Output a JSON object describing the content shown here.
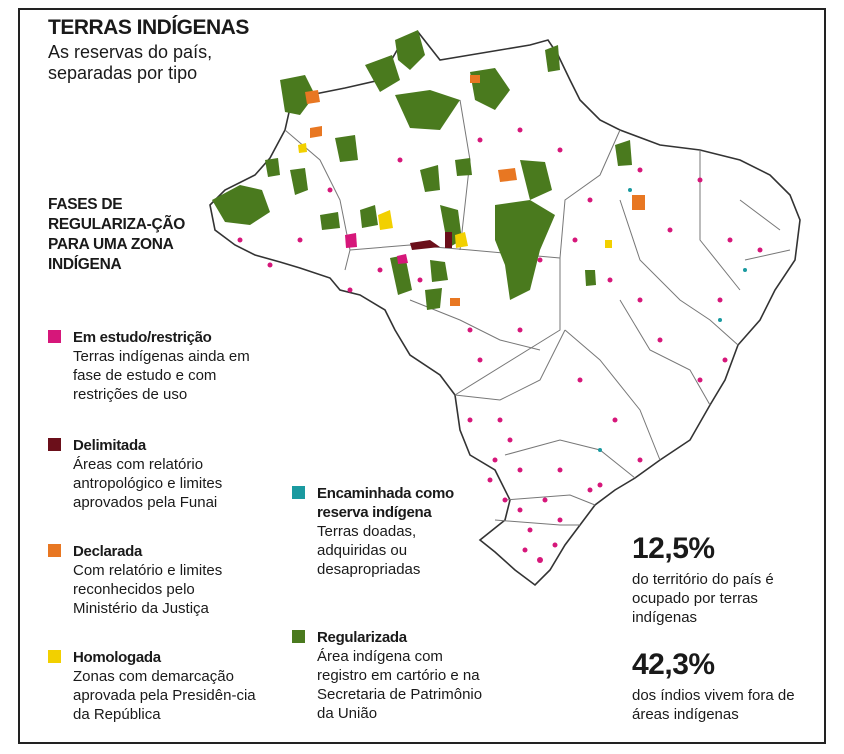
{
  "header": {
    "title": "TERRAS INDÍGENAS",
    "subtitle": "As reservas do país, separadas por tipo"
  },
  "legend": {
    "heading": "FASES DE REGULARIZA-ÇÃO PARA UMA ZONA INDÍGENA",
    "items": [
      {
        "title": "Em estudo/restrição",
        "desc": "Terras indígenas ainda em fase de estudo e com restrições de uso",
        "color": "#d6177a"
      },
      {
        "title": "Delimitada",
        "desc": "Áreas com relatório antropológico e limites aprovados pela Funai",
        "color": "#6b0f1a"
      },
      {
        "title": "Declarada",
        "desc": "Com relatório e limites reconhecidos pelo Ministério da Justiça",
        "color": "#e87722"
      },
      {
        "title": "Homologada",
        "desc": "Zonas com demarcação aprovada pela Presidên-cia da República",
        "color": "#f2d000"
      },
      {
        "title": "Encaminhada como reserva indígena",
        "desc": "Terras doadas, adquiridas ou desapropriadas",
        "color": "#1a9aa0"
      },
      {
        "title": "Regularizada",
        "desc": "Área indígena com registro em cartório e na Secretaria de Patrimônio da União",
        "color": "#4a7a1e"
      }
    ]
  },
  "stats": [
    {
      "value": "12,5%",
      "text": "do território do país é ocupado por terras indígenas"
    },
    {
      "value": "42,3%",
      "text": "dos índios vivem fora de áreas indígenas"
    }
  ],
  "map": {
    "land_color": "#ffffff",
    "border_color": "#555555"
  }
}
